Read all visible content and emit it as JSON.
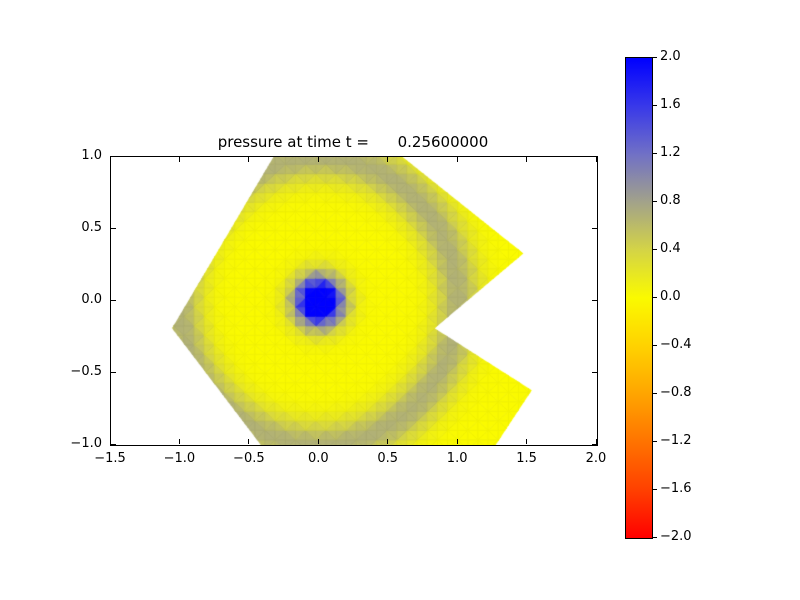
{
  "figure": {
    "background": "#ffffff"
  },
  "chart_data": {
    "type": "heatmap",
    "title": "pressure at time t =      0.25600000",
    "xlabel": "",
    "ylabel": "",
    "x_range": [
      -1.5,
      2.0
    ],
    "y_range": [
      -1.0,
      1.0
    ],
    "x_tick_values": [
      -1.5,
      -1.0,
      -0.5,
      0.0,
      0.5,
      1.0,
      1.5,
      2.0
    ],
    "x_tick_labels": [
      "−1.5",
      "−1.0",
      "−0.5",
      "0.0",
      "0.5",
      "1.0",
      "1.5",
      "2.0"
    ],
    "y_tick_values": [
      1.0,
      0.5,
      0.0,
      -0.5,
      -1.0
    ],
    "y_tick_labels": [
      "1.0",
      "0.5",
      "0.0",
      "−0.5",
      "−1.0"
    ],
    "grid": false,
    "plot_background": "#ffffff",
    "domain_polygon": [
      [
        -1.06,
        -0.19
      ],
      [
        -0.42,
        -1.0
      ],
      [
        1.27,
        -1.0
      ],
      [
        1.53,
        -0.62
      ],
      [
        0.83,
        -0.19
      ],
      [
        1.47,
        0.33
      ],
      [
        0.6,
        1.0
      ],
      [
        -0.33,
        1.0
      ]
    ],
    "field": {
      "description": "radially symmetric pressure pulse centered at origin with an expanding wave ring, flat-shaded on a triangular mesh, clipped to a notched hexagonal domain",
      "center": [
        0,
        0
      ],
      "components": [
        {
          "type": "gaussian",
          "amplitude": 2.8,
          "r0": 0.0,
          "sigma": 0.17
        },
        {
          "type": "gaussian",
          "amplitude": 0.68,
          "r0": 1.0,
          "sigma": 0.17
        }
      ],
      "radial_profile": {
        "r": [
          0.0,
          0.05,
          0.1,
          0.15,
          0.2,
          0.3,
          0.4,
          0.6,
          0.8,
          0.9,
          1.0,
          1.1,
          1.2,
          1.4
        ],
        "pressure": [
          2.0,
          2.0,
          1.9,
          1.5,
          0.9,
          0.15,
          0.03,
          0.01,
          0.18,
          0.45,
          0.68,
          0.45,
          0.17,
          0.01
        ]
      }
    },
    "colorbar": {
      "min": -2.0,
      "max": 2.0,
      "tick_values": [
        2.0,
        1.6,
        1.2,
        0.8,
        0.4,
        0.0,
        -0.4,
        -0.8,
        -1.2,
        -1.6,
        -2.0
      ],
      "tick_labels": [
        "2.0",
        "1.6",
        "1.2",
        "0.8",
        "0.4",
        "0.0",
        "−0.4",
        "−0.8",
        "−1.2",
        "−1.6",
        "−2.0"
      ],
      "colormap_stops": [
        {
          "value": -2.0,
          "color": "#ff0000"
        },
        {
          "value": -1.6,
          "color": "#ff4000"
        },
        {
          "value": -1.2,
          "color": "#ff7300"
        },
        {
          "value": -0.8,
          "color": "#ffa500"
        },
        {
          "value": -0.4,
          "color": "#ffd200"
        },
        {
          "value": 0.0,
          "color": "#fafa00"
        },
        {
          "value": 0.4,
          "color": "#d4d446"
        },
        {
          "value": 0.8,
          "color": "#a2a28a"
        },
        {
          "value": 1.2,
          "color": "#7070c6"
        },
        {
          "value": 1.6,
          "color": "#3838e9"
        },
        {
          "value": 2.0,
          "color": "#0000ff"
        }
      ]
    },
    "mesh": {
      "visible": true,
      "style": "triangular",
      "edge_alpha": 0.07
    }
  }
}
